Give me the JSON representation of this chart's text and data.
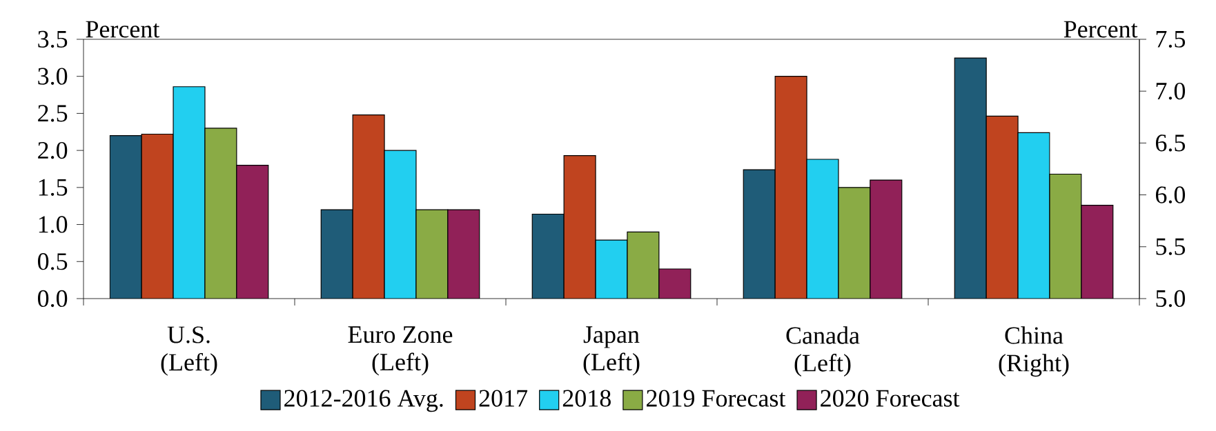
{
  "chart_data": {
    "type": "bar",
    "ylabel": "Percent",
    "y2label": "Percent",
    "categories": [
      "U.S. (Left)",
      "Euro Zone (Left)",
      "Japan (Left)",
      "Canada (Left)",
      "China (Right)"
    ],
    "series": [
      {
        "name": "2012-2016 Avg.",
        "color": "#1f5c78",
        "values": [
          2.2,
          1.2,
          1.14,
          1.74,
          null
        ]
      },
      {
        "name": "2017",
        "color": "#c0441f",
        "values": [
          2.22,
          2.48,
          1.93,
          3.0,
          null
        ]
      },
      {
        "name": "2018",
        "color": "#22cff0",
        "values": [
          2.86,
          2.0,
          0.79,
          1.88,
          null
        ]
      },
      {
        "name": "2019 Forecast",
        "color": "#8aab45",
        "values": [
          2.3,
          1.2,
          0.9,
          1.5,
          null
        ]
      },
      {
        "name": "2020 Forecast",
        "color": "#912158",
        "values": [
          1.8,
          1.2,
          0.4,
          1.6,
          null
        ]
      },
      {
        "color": "#1f5c78",
        "axis": "y2",
        "values": [
          null,
          null,
          null,
          null,
          7.32
        ]
      },
      {
        "color": "#c0441f",
        "axis": "y2",
        "values": [
          null,
          null,
          null,
          null,
          6.76
        ]
      },
      {
        "color": "#22cff0",
        "axis": "y2",
        "values": [
          null,
          null,
          null,
          null,
          6.6
        ]
      },
      {
        "color": "#8aab45",
        "axis": "y2",
        "values": [
          null,
          null,
          null,
          null,
          6.2
        ]
      },
      {
        "color": "#912158",
        "axis": "y2",
        "values": [
          null,
          null,
          null,
          null,
          5.9
        ]
      }
    ],
    "ylim": [
      0,
      3.5
    ],
    "yticks": [
      {
        "value": 0,
        "label": "0.0"
      },
      0.5,
      {
        "value": 1,
        "label": "1.0"
      },
      1.5,
      {
        "value": 2,
        "label": "2.0"
      },
      2.5,
      {
        "value": 3,
        "label": "3.0"
      },
      3.5
    ],
    "y2lim": [
      5,
      7.5
    ],
    "y2ticks": [
      {
        "value": 5,
        "label": "5.0"
      },
      5.5,
      {
        "value": 6,
        "label": "6.0"
      },
      6.5,
      {
        "value": 7,
        "label": "7.0"
      },
      7.5
    ],
    "legend": "bottom"
  }
}
